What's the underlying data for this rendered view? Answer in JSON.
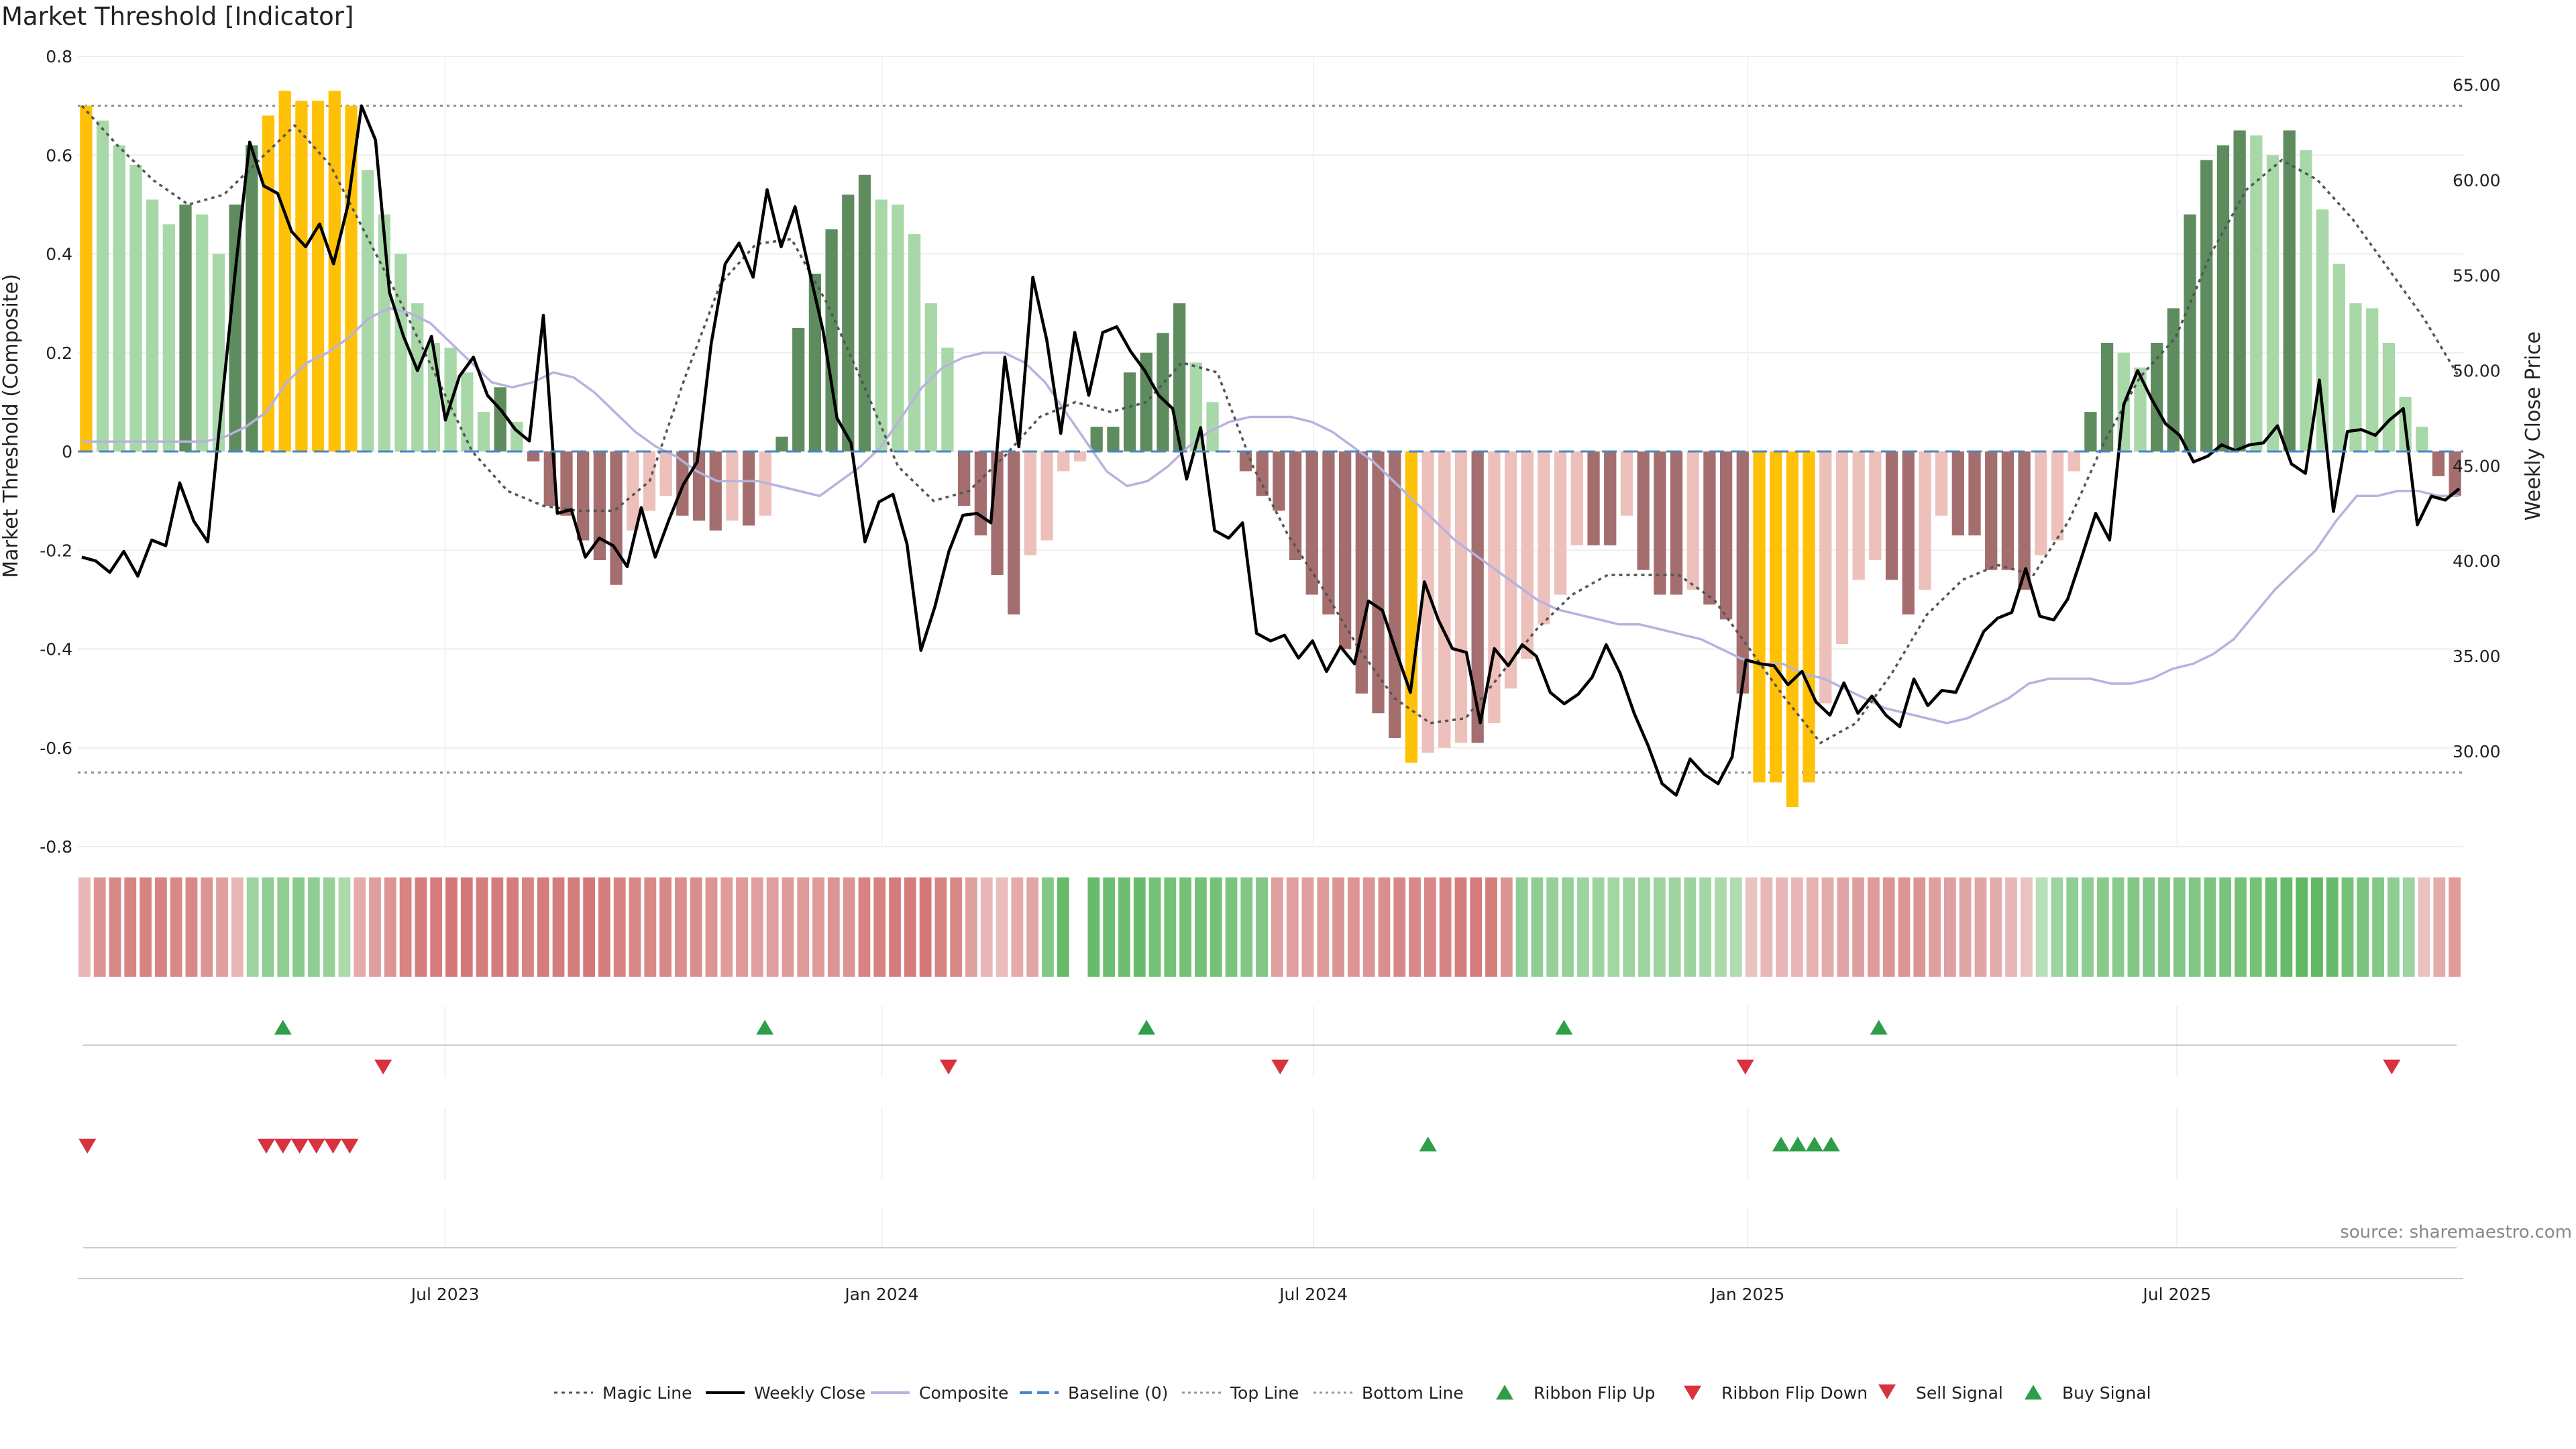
{
  "chart_data": {
    "type": "bar",
    "title": "Market Threshold [Indicator]",
    "ylabel_left": "Market Threshold (Composite)",
    "ylabel_right": "Weekly Close Price",
    "source": "source: sharemaestro.com",
    "left_axis": {
      "ylim": [
        -0.8,
        0.8
      ],
      "ticks": [
        "0.8",
        "0.6",
        "0.4",
        "0.2",
        "0",
        "-0.2",
        "-0.4",
        "-0.6",
        "-0.8"
      ]
    },
    "right_axis": {
      "ylim": [
        25,
        66.5
      ],
      "ticks": [
        "65.00",
        "60.00",
        "55.00",
        "50.00",
        "45.00",
        "40.00",
        "35.00",
        "30.00"
      ]
    },
    "x_ticks": [
      "Jul 2023",
      "Jan 2024",
      "Jul 2024",
      "Jan 2025",
      "Jul 2025"
    ],
    "top_line": 0.7,
    "bottom_line": -0.65,
    "legend": [
      "Magic Line",
      "Weekly Close",
      "Composite",
      "Baseline (0)",
      "Top Line",
      "Bottom Line",
      "Ribbon Flip Up",
      "Ribbon Flip Down",
      "Sell Signal",
      "Buy Signal"
    ],
    "colors": {
      "gold": "#FFC107",
      "dark_green": "#5E8C5E",
      "light_green": "#A8D8A8",
      "dark_red": "#A56E6E",
      "light_red": "#EDC0BC",
      "composite": "#B8B2DE",
      "baseline": "#4A86C5",
      "signal_green": "#2E9E48",
      "signal_red": "#D8323F"
    },
    "bar_values": [
      0.7,
      0.67,
      0.62,
      0.58,
      0.51,
      0.46,
      0.5,
      0.48,
      0.4,
      0.5,
      0.62,
      0.68,
      0.73,
      0.71,
      0.71,
      0.73,
      0.7,
      0.57,
      0.48,
      0.4,
      0.3,
      0.22,
      0.21,
      0.16,
      0.08,
      0.13,
      0.06,
      -0.02,
      -0.11,
      -0.13,
      -0.18,
      -0.22,
      -0.27,
      -0.16,
      -0.12,
      -0.09,
      -0.13,
      -0.14,
      -0.16,
      -0.14,
      -0.15,
      -0.13,
      0.03,
      0.25,
      0.36,
      0.45,
      0.52,
      0.56,
      0.51,
      0.5,
      0.44,
      0.3,
      0.21,
      -0.11,
      -0.17,
      -0.25,
      -0.33,
      -0.21,
      -0.18,
      -0.04,
      -0.02,
      0.05,
      0.05,
      0.16,
      0.2,
      0.24,
      0.3,
      0.18,
      0.1,
      0.0,
      -0.04,
      -0.09,
      -0.12,
      -0.22,
      -0.29,
      -0.33,
      -0.4,
      -0.49,
      -0.53,
      -0.58,
      -0.63,
      -0.61,
      -0.6,
      -0.59,
      -0.59,
      -0.55,
      -0.48,
      -0.42,
      -0.35,
      -0.29,
      -0.19,
      -0.19,
      -0.19,
      -0.13,
      -0.24,
      -0.29,
      -0.29,
      -0.28,
      -0.31,
      -0.34,
      -0.49,
      -0.67,
      -0.67,
      -0.72,
      -0.67,
      -0.51,
      -0.39,
      -0.26,
      -0.22,
      -0.26,
      -0.33,
      -0.28,
      -0.13,
      -0.17,
      -0.17,
      -0.24,
      -0.24,
      -0.28,
      -0.21,
      -0.18,
      -0.04,
      0.08,
      0.22,
      0.2,
      0.17,
      0.22,
      0.29,
      0.48,
      0.59,
      0.62,
      0.65,
      0.64,
      0.6,
      0.65,
      0.61,
      0.49,
      0.38,
      0.3,
      0.29,
      0.22,
      0.11,
      0.05,
      -0.05,
      -0.09
    ],
    "close_values": [
      40.2,
      40.0,
      39.4,
      40.5,
      39.2,
      41.1,
      40.8,
      44.1,
      42.1,
      41.0,
      48.2,
      55.4,
      62.0,
      59.7,
      59.3,
      57.3,
      56.5,
      57.7,
      55.6,
      58.6,
      63.9,
      62.1,
      54.1,
      51.8,
      50.0,
      51.8,
      47.4,
      49.7,
      50.7,
      48.7,
      47.9,
      46.9,
      46.3,
      52.9,
      42.5,
      42.7,
      40.2,
      41.2,
      40.8,
      39.7,
      42.8,
      40.2,
      42.2,
      44.0,
      45.2,
      51.4,
      55.6,
      56.7,
      54.9,
      59.5,
      56.5,
      58.6,
      55.3,
      52.1,
      47.5,
      46.2,
      41.0,
      43.1,
      43.5,
      40.9,
      35.3,
      37.6,
      40.5,
      42.4,
      42.5,
      42.0,
      50.7,
      46.0,
      54.9,
      51.6,
      46.7,
      52.0,
      48.7,
      52.0,
      52.3,
      51.0,
      50.0,
      48.7,
      48.0,
      44.3,
      47.0,
      41.6,
      41.2,
      42.0,
      36.2,
      35.8,
      36.1,
      34.9,
      35.8,
      34.2,
      35.5,
      34.6,
      37.9,
      37.4,
      35.2,
      33.1,
      38.9,
      36.9,
      35.4,
      35.2,
      31.5,
      35.4,
      34.5,
      35.6,
      35.0,
      33.1,
      32.5,
      33.0,
      33.9,
      35.6,
      34.1,
      32.0,
      30.3,
      28.3,
      27.7,
      29.6,
      28.8,
      28.3,
      29.7,
      34.8,
      34.6,
      34.5,
      33.5,
      34.2,
      32.6,
      31.9,
      33.6,
      32.0,
      32.9,
      31.9,
      31.3,
      33.8,
      32.4,
      33.2,
      33.1,
      34.7,
      36.3,
      37.0,
      37.3,
      39.6,
      37.1,
      36.9,
      38.0,
      40.2,
      42.5,
      41.1,
      48.2,
      50.0,
      48.5,
      47.2,
      46.6,
      45.2,
      45.5,
      46.1,
      45.8,
      46.1,
      46.2,
      47.1,
      45.1,
      44.6,
      49.5,
      42.6,
      46.8,
      46.9,
      46.6,
      47.4,
      48.0,
      41.9,
      43.4,
      43.2,
      43.8
    ],
    "composite_values": [
      0.02,
      0.02,
      0.02,
      0.02,
      0.02,
      0.02,
      0.02,
      0.03,
      0.05,
      0.08,
      0.14,
      0.18,
      0.2,
      0.23,
      0.27,
      0.29,
      0.28,
      0.26,
      0.22,
      0.18,
      0.14,
      0.13,
      0.14,
      0.16,
      0.15,
      0.12,
      0.08,
      0.04,
      0.01,
      -0.01,
      -0.04,
      -0.06,
      -0.06,
      -0.06,
      -0.07,
      -0.08,
      -0.09,
      -0.06,
      -0.03,
      0.01,
      0.07,
      0.13,
      0.17,
      0.19,
      0.2,
      0.2,
      0.18,
      0.14,
      0.08,
      0.02,
      -0.04,
      -0.07,
      -0.06,
      -0.03,
      0.01,
      0.04,
      0.06,
      0.07,
      0.07,
      0.07,
      0.06,
      0.04,
      0.01,
      -0.02,
      -0.06,
      -0.1,
      -0.14,
      -0.18,
      -0.21,
      -0.24,
      -0.27,
      -0.3,
      -0.32,
      -0.33,
      -0.34,
      -0.35,
      -0.35,
      -0.36,
      -0.37,
      -0.38,
      -0.4,
      -0.42,
      -0.43,
      -0.43,
      -0.45,
      -0.46,
      -0.48,
      -0.5,
      -0.52,
      -0.53,
      -0.54,
      -0.55,
      -0.54,
      -0.52,
      -0.5,
      -0.47,
      -0.46,
      -0.46,
      -0.46,
      -0.47,
      -0.47,
      -0.46,
      -0.44,
      -0.43,
      -0.41,
      -0.38,
      -0.33,
      -0.28,
      -0.24,
      -0.2,
      -0.14,
      -0.09,
      -0.09,
      -0.08,
      -0.08,
      -0.09,
      -0.09
    ],
    "magic_values": [
      0.7,
      0.62,
      0.55,
      0.5,
      0.52,
      0.59,
      0.66,
      0.58,
      0.44,
      0.3,
      0.15,
      0.0,
      -0.08,
      -0.11,
      -0.12,
      -0.12,
      -0.06,
      0.15,
      0.34,
      0.42,
      0.43,
      0.3,
      0.14,
      -0.03,
      -0.1,
      -0.08,
      -0.01,
      0.07,
      0.1,
      0.08,
      0.1,
      0.18,
      0.16,
      -0.03,
      -0.17,
      -0.28,
      -0.4,
      -0.5,
      -0.55,
      -0.54,
      -0.45,
      -0.36,
      -0.29,
      -0.25,
      -0.25,
      -0.25,
      -0.3,
      -0.4,
      -0.5,
      -0.59,
      -0.55,
      -0.45,
      -0.33,
      -0.26,
      -0.23,
      -0.25,
      -0.14,
      0.02,
      0.15,
      0.23,
      0.4,
      0.53,
      0.59,
      0.55,
      0.47,
      0.37,
      0.27,
      0.15
    ],
    "ribbon_values": [
      -0.3,
      -0.6,
      -0.7,
      -0.75,
      -0.75,
      -0.75,
      -0.7,
      -0.7,
      -0.6,
      -0.5,
      -0.3,
      0.4,
      0.5,
      0.5,
      0.55,
      0.5,
      0.45,
      0.3,
      -0.4,
      -0.5,
      -0.6,
      -0.75,
      -0.8,
      -0.8,
      -0.85,
      -0.85,
      -0.8,
      -0.8,
      -0.8,
      -0.75,
      -0.8,
      -0.8,
      -0.8,
      -0.85,
      -0.8,
      -0.75,
      -0.7,
      -0.7,
      -0.7,
      -0.65,
      -0.65,
      -0.6,
      -0.55,
      -0.55,
      -0.5,
      -0.5,
      -0.55,
      -0.55,
      -0.55,
      -0.6,
      -0.6,
      -0.75,
      -0.75,
      -0.8,
      -0.8,
      -0.85,
      -0.75,
      -0.7,
      -0.5,
      -0.3,
      -0.25,
      -0.4,
      -0.45,
      0.6,
      0.8,
      0.8,
      0.8,
      0.75,
      0.75,
      0.8,
      0.7,
      0.7,
      0.7,
      0.7,
      0.7,
      0.65,
      0.6,
      0.6,
      -0.5,
      -0.5,
      -0.5,
      -0.55,
      -0.6,
      -0.6,
      -0.6,
      -0.65,
      -0.7,
      -0.7,
      -0.7,
      -0.75,
      -0.8,
      -0.8,
      -0.8,
      -0.6,
      0.5,
      0.5,
      0.45,
      0.45,
      0.4,
      0.4,
      0.35,
      0.4,
      0.4,
      0.4,
      0.4,
      0.4,
      0.35,
      0.3,
      0.25,
      -0.2,
      -0.3,
      -0.3,
      -0.3,
      -0.35,
      -0.4,
      -0.45,
      -0.5,
      -0.55,
      -0.6,
      -0.6,
      -0.6,
      -0.5,
      -0.5,
      -0.45,
      -0.45,
      -0.4,
      -0.3,
      -0.2,
      0.2,
      0.4,
      0.5,
      0.5,
      0.55,
      0.55,
      0.6,
      0.6,
      0.6,
      0.6,
      0.6,
      0.65,
      0.65,
      0.7,
      0.7,
      0.75,
      0.8,
      0.85,
      0.85,
      0.8,
      0.7,
      0.65,
      0.6,
      0.5,
      0.4,
      -0.2,
      -0.4,
      -0.55
    ],
    "ribbon_flip_up_x": [
      0.086,
      0.288,
      0.448,
      0.623,
      0.755
    ],
    "ribbon_flip_down_x": [
      0.128,
      0.365,
      0.504,
      0.699,
      0.97
    ],
    "sell_signal_x": [
      0.004,
      0.079,
      0.086,
      0.093,
      0.1,
      0.107,
      0.114
    ],
    "buy_signal_x": [
      0.566,
      0.714,
      0.721,
      0.728,
      0.735
    ]
  }
}
